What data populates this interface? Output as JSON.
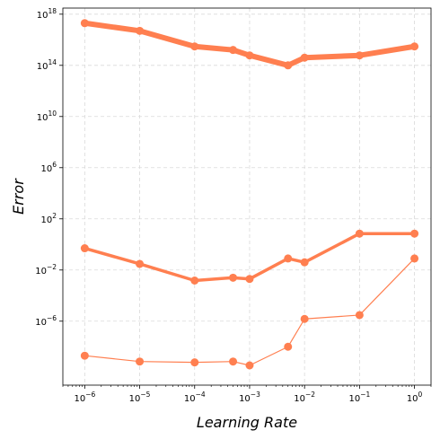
{
  "chart_data": {
    "type": "line",
    "title": "",
    "xlabel": "Learning Rate",
    "ylabel": "Error",
    "xscale": "log",
    "yscale": "log",
    "xlim": [
      4e-07,
      2
    ],
    "ylim": [
      1e-11,
      3e+18
    ],
    "grid": true,
    "legend": "none",
    "x": [
      1e-06,
      1e-05,
      0.0001,
      0.0005,
      0.001,
      0.005,
      0.01,
      0.1,
      1
    ],
    "x_ticks": [
      {
        "value": 1e-06,
        "base": "10",
        "exp": "−6"
      },
      {
        "value": 1e-05,
        "base": "10",
        "exp": "−5"
      },
      {
        "value": 0.0001,
        "base": "10",
        "exp": "−4"
      },
      {
        "value": 0.001,
        "base": "10",
        "exp": "−3"
      },
      {
        "value": 0.01,
        "base": "10",
        "exp": "−2"
      },
      {
        "value": 0.1,
        "base": "10",
        "exp": "−1"
      },
      {
        "value": 1,
        "base": "10",
        "exp": "0"
      }
    ],
    "y_ticks": [
      {
        "value": 1e-06,
        "base": "10",
        "exp": "−6"
      },
      {
        "value": 0.01,
        "base": "10",
        "exp": "−2"
      },
      {
        "value": 100.0,
        "base": "10",
        "exp": "2"
      },
      {
        "value": 1000000.0,
        "base": "10",
        "exp": "6"
      },
      {
        "value": 10000000000.0,
        "base": "10",
        "exp": "10"
      },
      {
        "value": 100000000000000.0,
        "base": "10",
        "exp": "14"
      },
      {
        "value": 1e+18,
        "base": "10",
        "exp": "18"
      }
    ],
    "series": [
      {
        "color": "#ff7f50",
        "line_width": 6,
        "values": [
          2e+17,
          5e+16,
          3000000000000000.0,
          1600000000000000.0,
          600000000000000.0,
          100000000000000.0,
          400000000000000.0,
          600000000000000.0,
          3000000000000000.0
        ]
      },
      {
        "color": "#ff7f50",
        "line_width": 3.5,
        "values": [
          0.5,
          0.03,
          0.0015,
          0.0025,
          0.002,
          0.08,
          0.04,
          7,
          7
        ]
      },
      {
        "color": "#ff7f50",
        "line_width": 1.2,
        "values": [
          2e-09,
          7e-10,
          6e-10,
          7e-10,
          3.5e-10,
          1e-08,
          1.5e-06,
          3e-06,
          0.08
        ]
      }
    ]
  }
}
